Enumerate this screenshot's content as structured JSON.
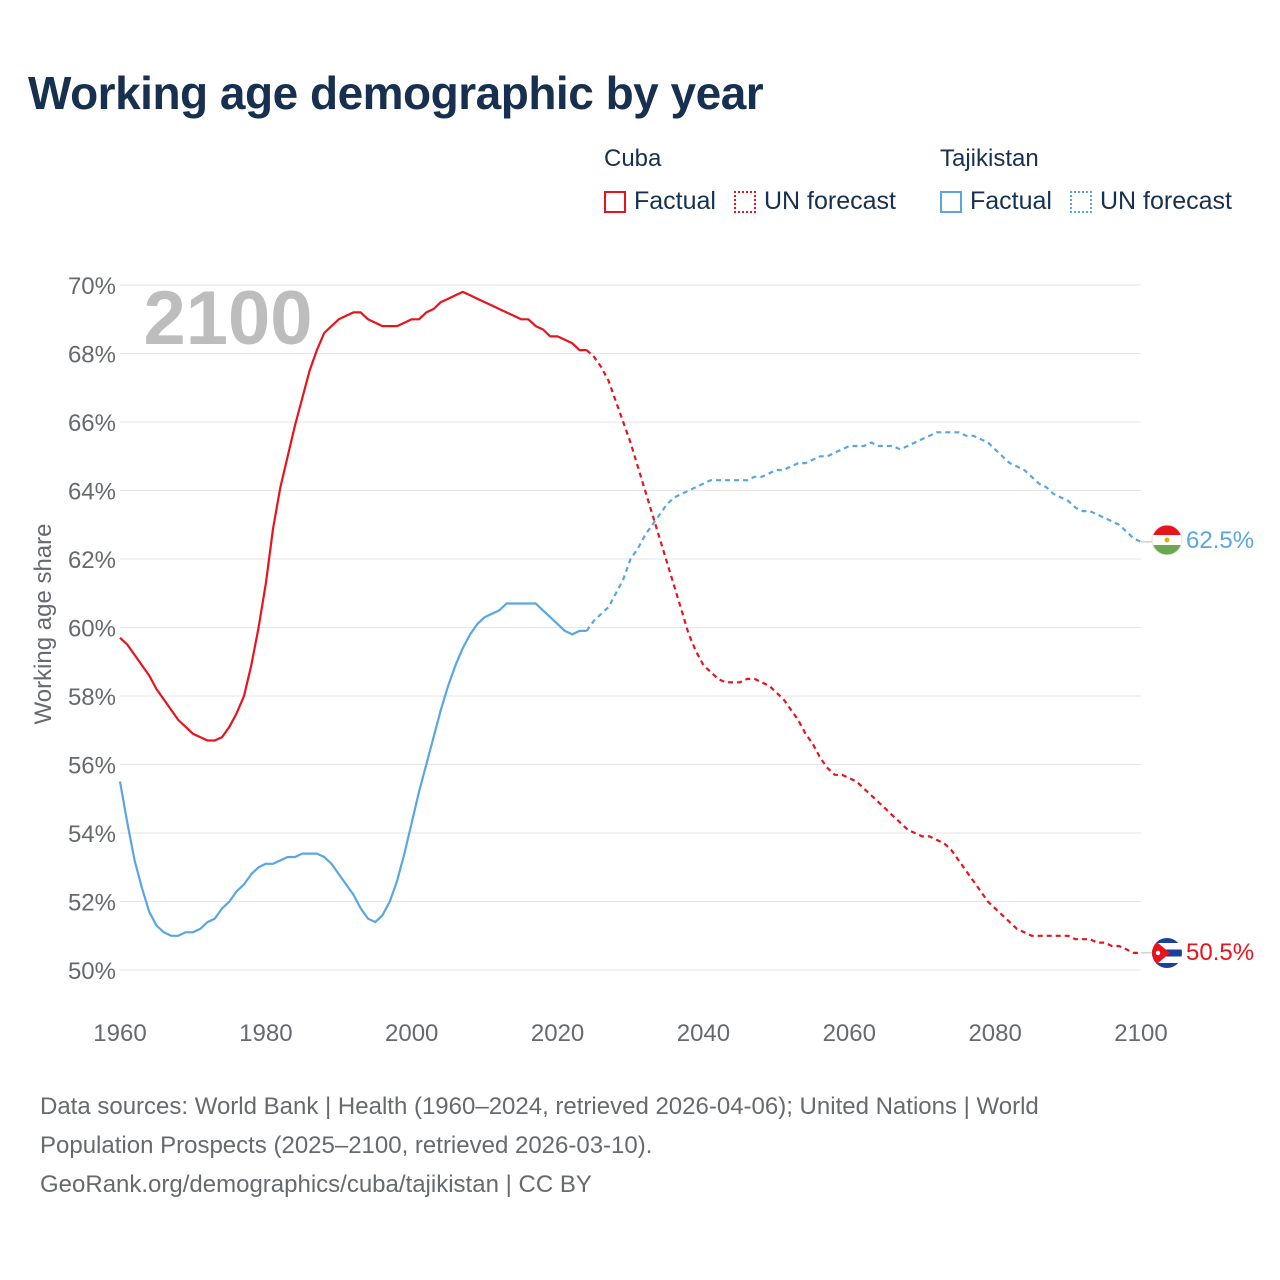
{
  "header": {
    "title": "Working age demographic by year"
  },
  "legend": {
    "groups": [
      {
        "country": "Cuba",
        "factual_label": "Factual",
        "forecast_label": "UN forecast",
        "color": "#e8141c"
      },
      {
        "country": "Tajikistan",
        "factual_label": "Factual",
        "forecast_label": "UN forecast",
        "color": "#5aa6e3"
      }
    ]
  },
  "year_watermark": "2100",
  "footer": {
    "line1": "Data sources: World Bank | Health (1960–2024, retrieved 2026-04-06); United Nations | World",
    "line2": "Population Prospects (2025–2100, retrieved 2026-03-10).",
    "line3": "GeoRank.org/demographics/cuba/tajikistan | CC BY"
  },
  "end_labels": {
    "tajikistan": "62.5%",
    "cuba": "50.5%"
  },
  "chart_data": {
    "type": "line",
    "title": "Working age demographic by year",
    "xlabel": "",
    "ylabel": "Working age share",
    "xlim": [
      1960,
      2100
    ],
    "ylim": [
      49,
      70.5
    ],
    "x_ticks": [
      1960,
      1980,
      2000,
      2020,
      2040,
      2060,
      2080,
      2100
    ],
    "x_tick_labels": [
      "1960",
      "1980",
      "2000",
      "2020",
      "2040",
      "2060",
      "2080",
      "2100"
    ],
    "y_ticks": [
      50,
      52,
      54,
      56,
      58,
      60,
      62,
      64,
      66,
      68,
      70
    ],
    "y_tick_labels": [
      "50%",
      "52%",
      "54%",
      "56%",
      "58%",
      "60%",
      "62%",
      "64%",
      "66%",
      "68%",
      "70%"
    ],
    "grid": true,
    "factual_range": [
      1960,
      2024
    ],
    "forecast_range": [
      2025,
      2100
    ],
    "series": [
      {
        "name": "Cuba",
        "color": "#e8141c",
        "end_value": 50.5,
        "points": [
          [
            1960,
            59.7
          ],
          [
            1961,
            59.5
          ],
          [
            1962,
            59.2
          ],
          [
            1963,
            58.9
          ],
          [
            1964,
            58.6
          ],
          [
            1965,
            58.2
          ],
          [
            1966,
            57.9
          ],
          [
            1967,
            57.6
          ],
          [
            1968,
            57.3
          ],
          [
            1969,
            57.1
          ],
          [
            1970,
            56.9
          ],
          [
            1971,
            56.8
          ],
          [
            1972,
            56.7
          ],
          [
            1973,
            56.7
          ],
          [
            1974,
            56.8
          ],
          [
            1975,
            57.1
          ],
          [
            1976,
            57.5
          ],
          [
            1977,
            58.0
          ],
          [
            1978,
            58.9
          ],
          [
            1979,
            60.0
          ],
          [
            1980,
            61.3
          ],
          [
            1981,
            62.9
          ],
          [
            1982,
            64.1
          ],
          [
            1983,
            65.0
          ],
          [
            1984,
            65.9
          ],
          [
            1985,
            66.7
          ],
          [
            1986,
            67.5
          ],
          [
            1987,
            68.1
          ],
          [
            1988,
            68.6
          ],
          [
            1989,
            68.8
          ],
          [
            1990,
            69.0
          ],
          [
            1991,
            69.1
          ],
          [
            1992,
            69.2
          ],
          [
            1993,
            69.2
          ],
          [
            1994,
            69.0
          ],
          [
            1995,
            68.9
          ],
          [
            1996,
            68.8
          ],
          [
            1997,
            68.8
          ],
          [
            1998,
            68.8
          ],
          [
            1999,
            68.9
          ],
          [
            2000,
            69.0
          ],
          [
            2001,
            69.0
          ],
          [
            2002,
            69.2
          ],
          [
            2003,
            69.3
          ],
          [
            2004,
            69.5
          ],
          [
            2005,
            69.6
          ],
          [
            2006,
            69.7
          ],
          [
            2007,
            69.8
          ],
          [
            2008,
            69.7
          ],
          [
            2009,
            69.6
          ],
          [
            2010,
            69.5
          ],
          [
            2011,
            69.4
          ],
          [
            2012,
            69.3
          ],
          [
            2013,
            69.2
          ],
          [
            2014,
            69.1
          ],
          [
            2015,
            69.0
          ],
          [
            2016,
            69.0
          ],
          [
            2017,
            68.8
          ],
          [
            2018,
            68.7
          ],
          [
            2019,
            68.5
          ],
          [
            2020,
            68.5
          ],
          [
            2021,
            68.4
          ],
          [
            2022,
            68.3
          ],
          [
            2023,
            68.1
          ],
          [
            2024,
            68.1
          ],
          [
            2025,
            67.9
          ],
          [
            2026,
            67.6
          ],
          [
            2027,
            67.2
          ],
          [
            2028,
            66.6
          ],
          [
            2029,
            66.0
          ],
          [
            2030,
            65.4
          ],
          [
            2031,
            64.7
          ],
          [
            2032,
            64.0
          ],
          [
            2033,
            63.3
          ],
          [
            2034,
            62.6
          ],
          [
            2035,
            61.9
          ],
          [
            2036,
            61.2
          ],
          [
            2037,
            60.5
          ],
          [
            2038,
            59.8
          ],
          [
            2039,
            59.3
          ],
          [
            2040,
            58.9
          ],
          [
            2041,
            58.7
          ],
          [
            2042,
            58.5
          ],
          [
            2043,
            58.4
          ],
          [
            2044,
            58.4
          ],
          [
            2045,
            58.4
          ],
          [
            2046,
            58.5
          ],
          [
            2047,
            58.5
          ],
          [
            2048,
            58.4
          ],
          [
            2049,
            58.3
          ],
          [
            2050,
            58.1
          ],
          [
            2051,
            57.9
          ],
          [
            2052,
            57.6
          ],
          [
            2053,
            57.3
          ],
          [
            2054,
            56.9
          ],
          [
            2055,
            56.6
          ],
          [
            2056,
            56.2
          ],
          [
            2057,
            55.9
          ],
          [
            2058,
            55.7
          ],
          [
            2059,
            55.7
          ],
          [
            2060,
            55.6
          ],
          [
            2061,
            55.5
          ],
          [
            2062,
            55.3
          ],
          [
            2063,
            55.1
          ],
          [
            2064,
            54.9
          ],
          [
            2065,
            54.7
          ],
          [
            2066,
            54.5
          ],
          [
            2067,
            54.3
          ],
          [
            2068,
            54.1
          ],
          [
            2069,
            54.0
          ],
          [
            2070,
            53.9
          ],
          [
            2071,
            53.9
          ],
          [
            2072,
            53.8
          ],
          [
            2073,
            53.7
          ],
          [
            2074,
            53.5
          ],
          [
            2075,
            53.2
          ],
          [
            2076,
            52.9
          ],
          [
            2077,
            52.6
          ],
          [
            2078,
            52.3
          ],
          [
            2079,
            52.0
          ],
          [
            2080,
            51.8
          ],
          [
            2081,
            51.6
          ],
          [
            2082,
            51.4
          ],
          [
            2083,
            51.2
          ],
          [
            2084,
            51.1
          ],
          [
            2085,
            51.0
          ],
          [
            2086,
            51.0
          ],
          [
            2087,
            51.0
          ],
          [
            2088,
            51.0
          ],
          [
            2089,
            51.0
          ],
          [
            2090,
            51.0
          ],
          [
            2091,
            50.9
          ],
          [
            2092,
            50.9
          ],
          [
            2093,
            50.9
          ],
          [
            2094,
            50.8
          ],
          [
            2095,
            50.8
          ],
          [
            2096,
            50.7
          ],
          [
            2097,
            50.7
          ],
          [
            2098,
            50.6
          ],
          [
            2099,
            50.5
          ],
          [
            2100,
            50.5
          ]
        ]
      },
      {
        "name": "Tajikistan",
        "color": "#5aa6e3",
        "end_value": 62.5,
        "points": [
          [
            1960,
            55.5
          ],
          [
            1961,
            54.3
          ],
          [
            1962,
            53.2
          ],
          [
            1963,
            52.4
          ],
          [
            1964,
            51.7
          ],
          [
            1965,
            51.3
          ],
          [
            1966,
            51.1
          ],
          [
            1967,
            51.0
          ],
          [
            1968,
            51.0
          ],
          [
            1969,
            51.1
          ],
          [
            1970,
            51.1
          ],
          [
            1971,
            51.2
          ],
          [
            1972,
            51.4
          ],
          [
            1973,
            51.5
          ],
          [
            1974,
            51.8
          ],
          [
            1975,
            52.0
          ],
          [
            1976,
            52.3
          ],
          [
            1977,
            52.5
          ],
          [
            1978,
            52.8
          ],
          [
            1979,
            53.0
          ],
          [
            1980,
            53.1
          ],
          [
            1981,
            53.1
          ],
          [
            1982,
            53.2
          ],
          [
            1983,
            53.3
          ],
          [
            1984,
            53.3
          ],
          [
            1985,
            53.4
          ],
          [
            1986,
            53.4
          ],
          [
            1987,
            53.4
          ],
          [
            1988,
            53.3
          ],
          [
            1989,
            53.1
          ],
          [
            1990,
            52.8
          ],
          [
            1991,
            52.5
          ],
          [
            1992,
            52.2
          ],
          [
            1993,
            51.8
          ],
          [
            1994,
            51.5
          ],
          [
            1995,
            51.4
          ],
          [
            1996,
            51.6
          ],
          [
            1997,
            52.0
          ],
          [
            1998,
            52.6
          ],
          [
            1999,
            53.4
          ],
          [
            2000,
            54.3
          ],
          [
            2001,
            55.2
          ],
          [
            2002,
            56.0
          ],
          [
            2003,
            56.8
          ],
          [
            2004,
            57.6
          ],
          [
            2005,
            58.3
          ],
          [
            2006,
            58.9
          ],
          [
            2007,
            59.4
          ],
          [
            2008,
            59.8
          ],
          [
            2009,
            60.1
          ],
          [
            2010,
            60.3
          ],
          [
            2011,
            60.4
          ],
          [
            2012,
            60.5
          ],
          [
            2013,
            60.7
          ],
          [
            2014,
            60.7
          ],
          [
            2015,
            60.7
          ],
          [
            2016,
            60.7
          ],
          [
            2017,
            60.7
          ],
          [
            2018,
            60.5
          ],
          [
            2019,
            60.3
          ],
          [
            2020,
            60.1
          ],
          [
            2021,
            59.9
          ],
          [
            2022,
            59.8
          ],
          [
            2023,
            59.9
          ],
          [
            2024,
            59.9
          ],
          [
            2025,
            60.2
          ],
          [
            2026,
            60.4
          ],
          [
            2027,
            60.6
          ],
          [
            2028,
            61.0
          ],
          [
            2029,
            61.4
          ],
          [
            2030,
            62.0
          ],
          [
            2031,
            62.3
          ],
          [
            2032,
            62.7
          ],
          [
            2033,
            63.0
          ],
          [
            2034,
            63.3
          ],
          [
            2035,
            63.6
          ],
          [
            2036,
            63.8
          ],
          [
            2037,
            63.9
          ],
          [
            2038,
            64.0
          ],
          [
            2039,
            64.1
          ],
          [
            2040,
            64.2
          ],
          [
            2041,
            64.3
          ],
          [
            2042,
            64.3
          ],
          [
            2043,
            64.3
          ],
          [
            2044,
            64.3
          ],
          [
            2045,
            64.3
          ],
          [
            2046,
            64.3
          ],
          [
            2047,
            64.4
          ],
          [
            2048,
            64.4
          ],
          [
            2049,
            64.5
          ],
          [
            2050,
            64.6
          ],
          [
            2051,
            64.6
          ],
          [
            2052,
            64.7
          ],
          [
            2053,
            64.8
          ],
          [
            2054,
            64.8
          ],
          [
            2055,
            64.9
          ],
          [
            2056,
            65.0
          ],
          [
            2057,
            65.0
          ],
          [
            2058,
            65.1
          ],
          [
            2059,
            65.2
          ],
          [
            2060,
            65.3
          ],
          [
            2061,
            65.3
          ],
          [
            2062,
            65.3
          ],
          [
            2063,
            65.4
          ],
          [
            2064,
            65.3
          ],
          [
            2065,
            65.3
          ],
          [
            2066,
            65.3
          ],
          [
            2067,
            65.2
          ],
          [
            2068,
            65.3
          ],
          [
            2069,
            65.4
          ],
          [
            2070,
            65.5
          ],
          [
            2071,
            65.6
          ],
          [
            2072,
            65.7
          ],
          [
            2073,
            65.7
          ],
          [
            2074,
            65.7
          ],
          [
            2075,
            65.7
          ],
          [
            2076,
            65.6
          ],
          [
            2077,
            65.6
          ],
          [
            2078,
            65.5
          ],
          [
            2079,
            65.4
          ],
          [
            2080,
            65.2
          ],
          [
            2081,
            65.0
          ],
          [
            2082,
            64.8
          ],
          [
            2083,
            64.7
          ],
          [
            2084,
            64.6
          ],
          [
            2085,
            64.4
          ],
          [
            2086,
            64.2
          ],
          [
            2087,
            64.1
          ],
          [
            2088,
            63.9
          ],
          [
            2089,
            63.8
          ],
          [
            2090,
            63.7
          ],
          [
            2091,
            63.5
          ],
          [
            2092,
            63.4
          ],
          [
            2093,
            63.4
          ],
          [
            2094,
            63.3
          ],
          [
            2095,
            63.2
          ],
          [
            2096,
            63.1
          ],
          [
            2097,
            63.0
          ],
          [
            2098,
            62.8
          ],
          [
            2099,
            62.6
          ],
          [
            2100,
            62.5
          ]
        ]
      }
    ]
  }
}
